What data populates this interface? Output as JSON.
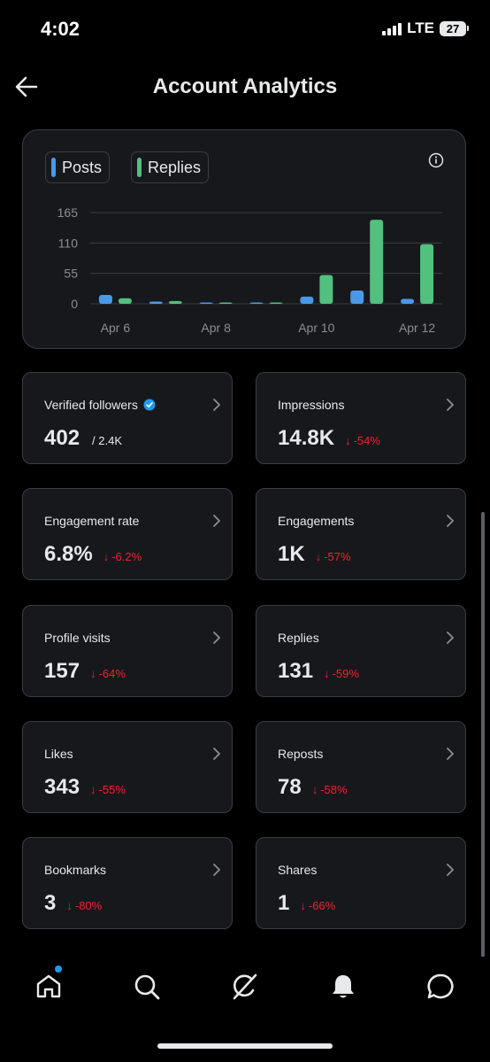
{
  "status_bar": {
    "time": "4:02",
    "network": "LTE",
    "battery": "27"
  },
  "header": {
    "title": "Account Analytics"
  },
  "chart_legend": [
    {
      "label": "Posts",
      "color": "#4a99e9"
    },
    {
      "label": "Replies",
      "color": "#52c07e"
    }
  ],
  "chart_data": {
    "type": "bar",
    "ylim": [
      0,
      165
    ],
    "y_ticks": [
      "165",
      "110",
      "55",
      "0"
    ],
    "x_tick_labels": [
      "Apr 6",
      "Apr 8",
      "Apr 10",
      "Apr 12"
    ],
    "categories": [
      "Apr 6",
      "Apr 7",
      "Apr 8",
      "Apr 9",
      "Apr 10",
      "Apr 11",
      "Apr 12"
    ],
    "series": [
      {
        "name": "Posts",
        "color": "#4a99e9",
        "values": [
          16,
          4,
          0,
          2,
          13,
          24,
          9
        ]
      },
      {
        "name": "Replies",
        "color": "#52c07e",
        "values": [
          10,
          5,
          0,
          0,
          52,
          152,
          108
        ]
      }
    ]
  },
  "metrics": [
    {
      "label": "Verified followers",
      "verified": true,
      "value": "402",
      "sub": "/ 2.4K",
      "change": ""
    },
    {
      "label": "Impressions",
      "value": "14.8K",
      "sub": "",
      "change": "-54%"
    },
    {
      "label": "Engagement rate",
      "value": "6.8%",
      "sub": "",
      "change": "-6.2%"
    },
    {
      "label": "Engagements",
      "value": "1K",
      "sub": "",
      "change": "-57%"
    },
    {
      "label": "Profile visits",
      "value": "157",
      "sub": "",
      "change": "-64%"
    },
    {
      "label": "Replies",
      "value": "131",
      "sub": "",
      "change": "-59%"
    },
    {
      "label": "Likes",
      "value": "343",
      "sub": "",
      "change": "-55%"
    },
    {
      "label": "Reposts",
      "value": "78",
      "sub": "",
      "change": "-58%"
    },
    {
      "label": "Bookmarks",
      "value": "3",
      "sub": "",
      "change": "-80%"
    },
    {
      "label": "Shares",
      "value": "1",
      "sub": "",
      "change": "-66%"
    }
  ],
  "tab_bar": {
    "tabs": [
      "home-icon",
      "search-icon",
      "grok-icon",
      "bell-icon",
      "messages-icon"
    ],
    "home_has_notification": true
  },
  "colors": {
    "accent": "#1d9bf0",
    "negative": "#f4212e",
    "card_bg": "#16181c",
    "border": "#3a3d42"
  }
}
